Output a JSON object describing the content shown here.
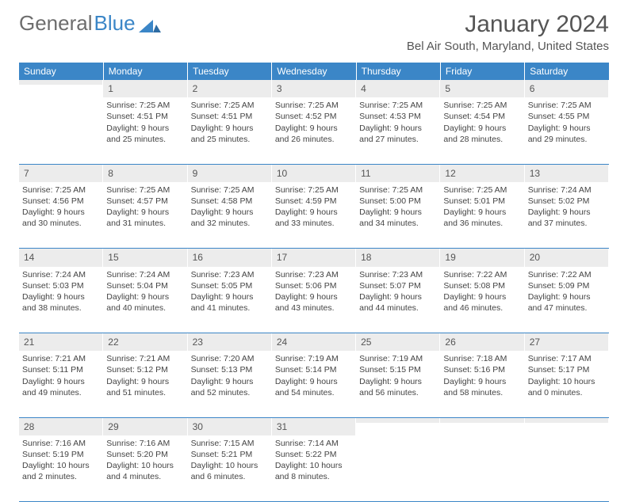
{
  "brand": {
    "part1": "General",
    "part2": "Blue",
    "brand_color": "#3b86c7",
    "gray": "#6d6d6d"
  },
  "title": "January 2024",
  "location": "Bel Air South, Maryland, United States",
  "colors": {
    "header_bg": "#3b86c7",
    "header_text": "#ffffff",
    "daynum_bg": "#ececec",
    "border": "#3b86c7"
  },
  "days_of_week": [
    "Sunday",
    "Monday",
    "Tuesday",
    "Wednesday",
    "Thursday",
    "Friday",
    "Saturday"
  ],
  "weeks": [
    [
      {
        "n": "",
        "sunrise": "",
        "sunset": "",
        "daylight": ""
      },
      {
        "n": "1",
        "sunrise": "Sunrise: 7:25 AM",
        "sunset": "Sunset: 4:51 PM",
        "daylight": "Daylight: 9 hours and 25 minutes."
      },
      {
        "n": "2",
        "sunrise": "Sunrise: 7:25 AM",
        "sunset": "Sunset: 4:51 PM",
        "daylight": "Daylight: 9 hours and 25 minutes."
      },
      {
        "n": "3",
        "sunrise": "Sunrise: 7:25 AM",
        "sunset": "Sunset: 4:52 PM",
        "daylight": "Daylight: 9 hours and 26 minutes."
      },
      {
        "n": "4",
        "sunrise": "Sunrise: 7:25 AM",
        "sunset": "Sunset: 4:53 PM",
        "daylight": "Daylight: 9 hours and 27 minutes."
      },
      {
        "n": "5",
        "sunrise": "Sunrise: 7:25 AM",
        "sunset": "Sunset: 4:54 PM",
        "daylight": "Daylight: 9 hours and 28 minutes."
      },
      {
        "n": "6",
        "sunrise": "Sunrise: 7:25 AM",
        "sunset": "Sunset: 4:55 PM",
        "daylight": "Daylight: 9 hours and 29 minutes."
      }
    ],
    [
      {
        "n": "7",
        "sunrise": "Sunrise: 7:25 AM",
        "sunset": "Sunset: 4:56 PM",
        "daylight": "Daylight: 9 hours and 30 minutes."
      },
      {
        "n": "8",
        "sunrise": "Sunrise: 7:25 AM",
        "sunset": "Sunset: 4:57 PM",
        "daylight": "Daylight: 9 hours and 31 minutes."
      },
      {
        "n": "9",
        "sunrise": "Sunrise: 7:25 AM",
        "sunset": "Sunset: 4:58 PM",
        "daylight": "Daylight: 9 hours and 32 minutes."
      },
      {
        "n": "10",
        "sunrise": "Sunrise: 7:25 AM",
        "sunset": "Sunset: 4:59 PM",
        "daylight": "Daylight: 9 hours and 33 minutes."
      },
      {
        "n": "11",
        "sunrise": "Sunrise: 7:25 AM",
        "sunset": "Sunset: 5:00 PM",
        "daylight": "Daylight: 9 hours and 34 minutes."
      },
      {
        "n": "12",
        "sunrise": "Sunrise: 7:25 AM",
        "sunset": "Sunset: 5:01 PM",
        "daylight": "Daylight: 9 hours and 36 minutes."
      },
      {
        "n": "13",
        "sunrise": "Sunrise: 7:24 AM",
        "sunset": "Sunset: 5:02 PM",
        "daylight": "Daylight: 9 hours and 37 minutes."
      }
    ],
    [
      {
        "n": "14",
        "sunrise": "Sunrise: 7:24 AM",
        "sunset": "Sunset: 5:03 PM",
        "daylight": "Daylight: 9 hours and 38 minutes."
      },
      {
        "n": "15",
        "sunrise": "Sunrise: 7:24 AM",
        "sunset": "Sunset: 5:04 PM",
        "daylight": "Daylight: 9 hours and 40 minutes."
      },
      {
        "n": "16",
        "sunrise": "Sunrise: 7:23 AM",
        "sunset": "Sunset: 5:05 PM",
        "daylight": "Daylight: 9 hours and 41 minutes."
      },
      {
        "n": "17",
        "sunrise": "Sunrise: 7:23 AM",
        "sunset": "Sunset: 5:06 PM",
        "daylight": "Daylight: 9 hours and 43 minutes."
      },
      {
        "n": "18",
        "sunrise": "Sunrise: 7:23 AM",
        "sunset": "Sunset: 5:07 PM",
        "daylight": "Daylight: 9 hours and 44 minutes."
      },
      {
        "n": "19",
        "sunrise": "Sunrise: 7:22 AM",
        "sunset": "Sunset: 5:08 PM",
        "daylight": "Daylight: 9 hours and 46 minutes."
      },
      {
        "n": "20",
        "sunrise": "Sunrise: 7:22 AM",
        "sunset": "Sunset: 5:09 PM",
        "daylight": "Daylight: 9 hours and 47 minutes."
      }
    ],
    [
      {
        "n": "21",
        "sunrise": "Sunrise: 7:21 AM",
        "sunset": "Sunset: 5:11 PM",
        "daylight": "Daylight: 9 hours and 49 minutes."
      },
      {
        "n": "22",
        "sunrise": "Sunrise: 7:21 AM",
        "sunset": "Sunset: 5:12 PM",
        "daylight": "Daylight: 9 hours and 51 minutes."
      },
      {
        "n": "23",
        "sunrise": "Sunrise: 7:20 AM",
        "sunset": "Sunset: 5:13 PM",
        "daylight": "Daylight: 9 hours and 52 minutes."
      },
      {
        "n": "24",
        "sunrise": "Sunrise: 7:19 AM",
        "sunset": "Sunset: 5:14 PM",
        "daylight": "Daylight: 9 hours and 54 minutes."
      },
      {
        "n": "25",
        "sunrise": "Sunrise: 7:19 AM",
        "sunset": "Sunset: 5:15 PM",
        "daylight": "Daylight: 9 hours and 56 minutes."
      },
      {
        "n": "26",
        "sunrise": "Sunrise: 7:18 AM",
        "sunset": "Sunset: 5:16 PM",
        "daylight": "Daylight: 9 hours and 58 minutes."
      },
      {
        "n": "27",
        "sunrise": "Sunrise: 7:17 AM",
        "sunset": "Sunset: 5:17 PM",
        "daylight": "Daylight: 10 hours and 0 minutes."
      }
    ],
    [
      {
        "n": "28",
        "sunrise": "Sunrise: 7:16 AM",
        "sunset": "Sunset: 5:19 PM",
        "daylight": "Daylight: 10 hours and 2 minutes."
      },
      {
        "n": "29",
        "sunrise": "Sunrise: 7:16 AM",
        "sunset": "Sunset: 5:20 PM",
        "daylight": "Daylight: 10 hours and 4 minutes."
      },
      {
        "n": "30",
        "sunrise": "Sunrise: 7:15 AM",
        "sunset": "Sunset: 5:21 PM",
        "daylight": "Daylight: 10 hours and 6 minutes."
      },
      {
        "n": "31",
        "sunrise": "Sunrise: 7:14 AM",
        "sunset": "Sunset: 5:22 PM",
        "daylight": "Daylight: 10 hours and 8 minutes."
      },
      {
        "n": "",
        "sunrise": "",
        "sunset": "",
        "daylight": ""
      },
      {
        "n": "",
        "sunrise": "",
        "sunset": "",
        "daylight": ""
      },
      {
        "n": "",
        "sunrise": "",
        "sunset": "",
        "daylight": ""
      }
    ]
  ]
}
